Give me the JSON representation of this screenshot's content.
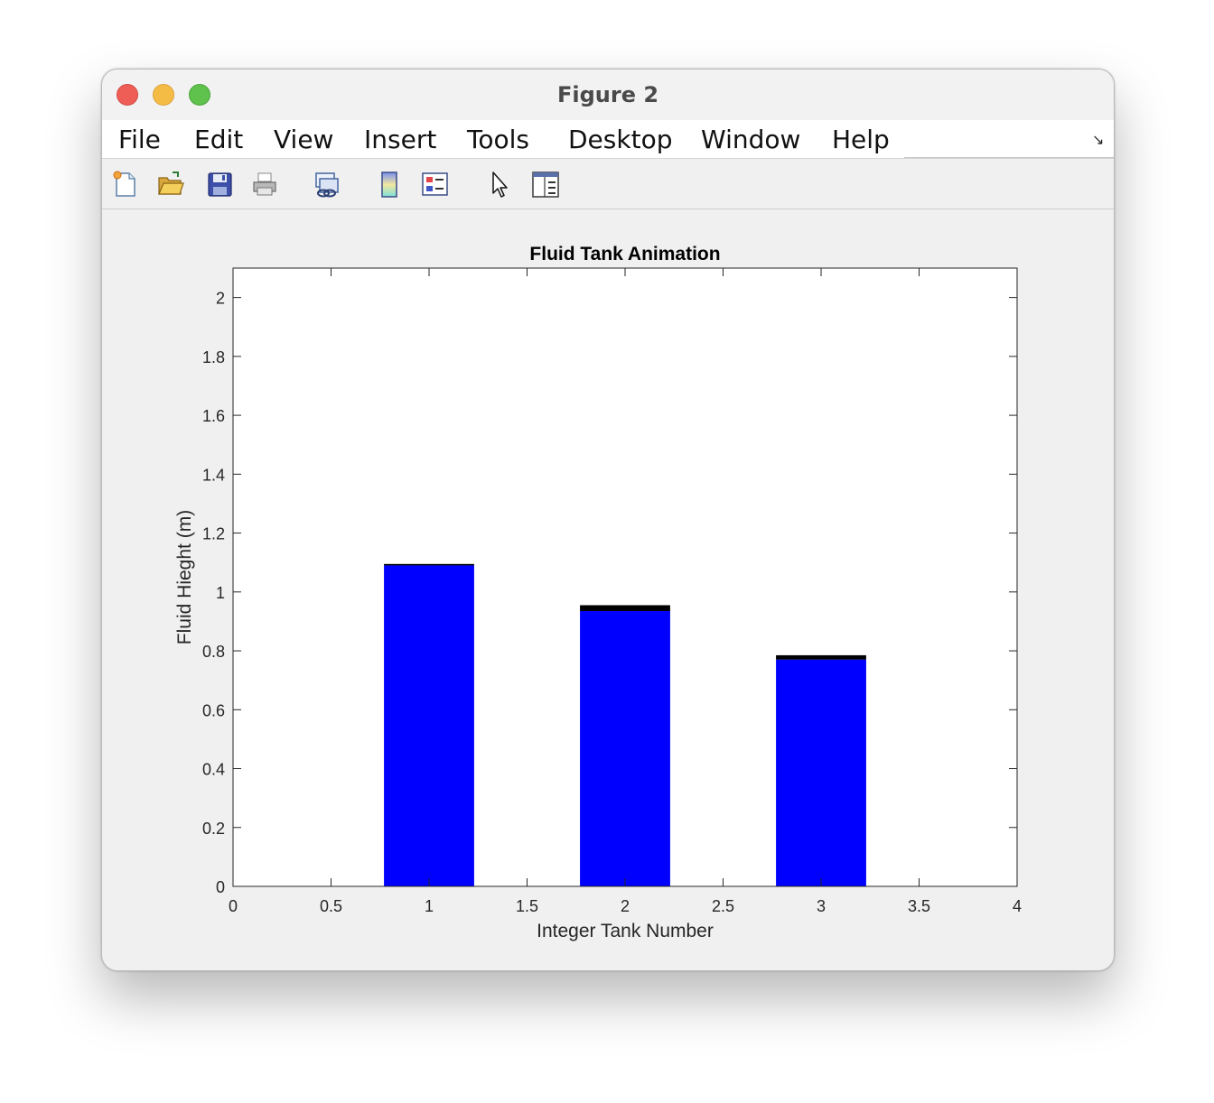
{
  "window": {
    "title": "Figure 2"
  },
  "menu": [
    "File",
    "Edit",
    "View",
    "Insert",
    "Tools",
    "Desktop",
    "Window",
    "Help"
  ],
  "toolbar": {
    "icons": [
      "new-figure-icon",
      "open-file-icon",
      "save-icon",
      "print-icon",
      "link-plot-icon",
      "colorbar-icon",
      "legend-icon",
      "pointer-icon",
      "property-inspector-icon"
    ]
  },
  "colors": {
    "bar": "#0000ff",
    "bar_top": "#000000"
  },
  "chart_data": {
    "type": "bar",
    "title": "Fluid Tank Animation",
    "xlabel": "Integer Tank Number",
    "ylabel": "Fluid Hieght (m)",
    "xlim": [
      0,
      4
    ],
    "ylim": [
      0,
      2.1
    ],
    "xticks": [
      "0",
      "0.5",
      "1",
      "1.5",
      "2",
      "2.5",
      "3",
      "3.5",
      "4"
    ],
    "yticks": [
      "0",
      "0.2",
      "0.4",
      "0.6",
      "0.8",
      "1",
      "1.2",
      "1.4",
      "1.6",
      "1.8",
      "2"
    ],
    "bar_width": 0.46,
    "x": [
      1,
      2,
      3
    ],
    "values": [
      1.09,
      0.935,
      0.77
    ],
    "top_bands": [
      1.095,
      0.955,
      0.785
    ],
    "grid": false
  }
}
